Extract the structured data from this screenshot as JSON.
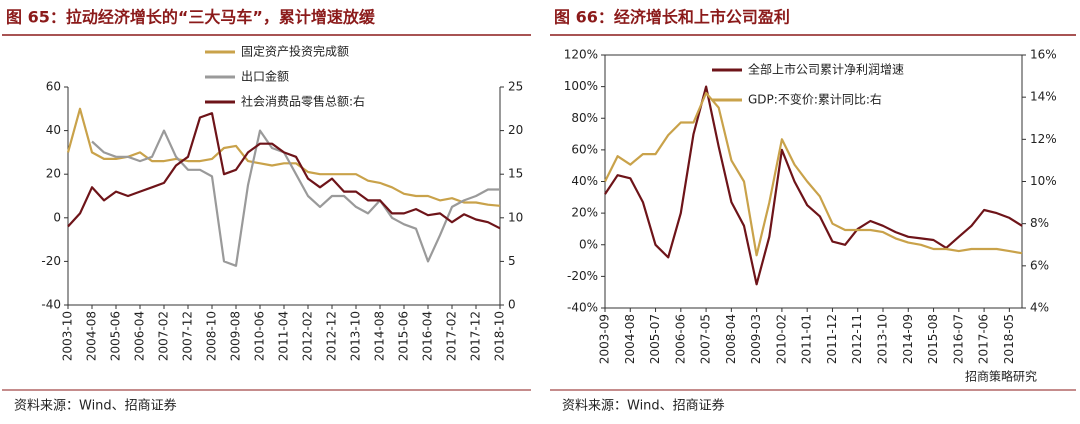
{
  "chart_data": [
    {
      "type": "line",
      "title": "图 65：拉动经济增长的“三大马车”，累计增速放缓",
      "source": "资料来源：Wind、招商证券",
      "categories": [
        "2003-10",
        null,
        "2004-08",
        null,
        "2005-06",
        null,
        "2006-04",
        null,
        "2007-02",
        null,
        "2007-12",
        null,
        "2008-10",
        null,
        "2009-08",
        null,
        "2010-06",
        null,
        "2011-04",
        null,
        "2012-02",
        null,
        "2012-12",
        null,
        "2013-10",
        null,
        "2014-08",
        null,
        "2015-06",
        null,
        "2016-04",
        null,
        "2017-02",
        null,
        "2017-12",
        null,
        "2018-10"
      ],
      "series": [
        {
          "name": "固定资产投资完成额",
          "color": "#c9a24a",
          "values": [
            30,
            50,
            30,
            27,
            27,
            28,
            30,
            26,
            26,
            27,
            26,
            26,
            27,
            32,
            33,
            26,
            25,
            24,
            25,
            25,
            21,
            20,
            20,
            20,
            20,
            17,
            16,
            14,
            11,
            10,
            10,
            8,
            9,
            7,
            7,
            6,
            5.5
          ]
        },
        {
          "name": "出口金额",
          "color": "#9a9a9a",
          "values": [
            null,
            null,
            35,
            30,
            28,
            28,
            26,
            28,
            40,
            28,
            22,
            22,
            19,
            -20,
            -22,
            15,
            40,
            32,
            30,
            20,
            10,
            5,
            10,
            10,
            5,
            2,
            8,
            0,
            -3,
            -5,
            -20,
            -8,
            5,
            8,
            10,
            13,
            13
          ]
        },
        {
          "name": "社会消费品零售总额:右",
          "color": "#6e1419",
          "axis": "y2",
          "values": [
            9,
            10.5,
            13.5,
            12,
            13,
            12.5,
            13,
            13.5,
            14,
            16,
            17,
            21.5,
            22,
            15,
            15.5,
            17.5,
            18.5,
            18.5,
            17.5,
            17,
            14.5,
            13.5,
            14.5,
            13,
            13,
            12,
            12,
            10.5,
            10.5,
            11,
            10.3,
            10.5,
            9.5,
            10.4,
            9.8,
            9.5,
            8.8
          ]
        }
      ],
      "ylim": [
        -40,
        60
      ],
      "yticks": [
        -40,
        -20,
        0,
        20,
        40,
        60
      ],
      "y2lim": [
        0,
        25
      ],
      "y2ticks": [
        0,
        5,
        10,
        15,
        20,
        25
      ]
    },
    {
      "type": "line",
      "title": "图 66：经济增长和上市公司盈利",
      "source": "资料来源：Wind、招商证券",
      "categories": [
        "2003-09",
        null,
        "2004-08",
        null,
        "2005-07",
        null,
        "2006-06",
        null,
        "2007-05",
        null,
        "2008-04",
        null,
        "2009-03",
        null,
        "2010-02",
        null,
        "2011-01",
        null,
        "2011-12",
        null,
        "2012-11",
        null,
        "2013-10",
        null,
        "2014-09",
        null,
        "2015-08",
        null,
        "2016-07",
        null,
        "2017-06",
        null,
        "2018-05",
        null
      ],
      "series": [
        {
          "name": "全部上市公司累计净利润增速",
          "color": "#6e1419",
          "values": [
            32,
            44,
            42,
            27,
            0,
            -8,
            20,
            70,
            100,
            62,
            27,
            12,
            -25,
            5,
            60,
            40,
            25,
            18,
            2,
            0,
            10,
            15,
            12,
            8,
            5,
            4,
            3,
            -2,
            5,
            12,
            22,
            20,
            17,
            12
          ]
        },
        {
          "name": "GDP:不变价:累计同比:右",
          "color": "#c9a24a",
          "axis": "y2",
          "values": [
            10.0,
            11.2,
            10.8,
            11.3,
            11.3,
            12.2,
            12.8,
            12.8,
            14.2,
            13.5,
            11.0,
            10.0,
            6.5,
            9.0,
            12.0,
            10.8,
            10.0,
            9.3,
            8.0,
            7.7,
            7.7,
            7.7,
            7.6,
            7.3,
            7.1,
            7.0,
            6.8,
            6.8,
            6.7,
            6.8,
            6.8,
            6.8,
            6.7,
            6.6
          ]
        }
      ],
      "ylim": [
        -40,
        120
      ],
      "yticks": [
        {
          "value": -40,
          "label": "-40%"
        },
        {
          "value": -20,
          "label": "-20%"
        },
        {
          "value": 0,
          "label": "0%"
        },
        {
          "value": 20,
          "label": "20%"
        },
        {
          "value": 40,
          "label": "40%"
        },
        {
          "value": 60,
          "label": "60%"
        },
        {
          "value": 80,
          "label": "80%"
        },
        {
          "value": 100,
          "label": "100%"
        },
        {
          "value": 120,
          "label": "120%"
        }
      ],
      "y2lim": [
        4,
        16
      ],
      "y2ticks": [
        {
          "value": 4,
          "label": "4%"
        },
        {
          "value": 6,
          "label": "6%"
        },
        {
          "value": 8,
          "label": "8%"
        },
        {
          "value": 10,
          "label": "10%"
        },
        {
          "value": 12,
          "label": "12%"
        },
        {
          "value": 14,
          "label": "14%"
        },
        {
          "value": 16,
          "label": "16%"
        }
      ],
      "watermark": "招商策略研究"
    }
  ]
}
